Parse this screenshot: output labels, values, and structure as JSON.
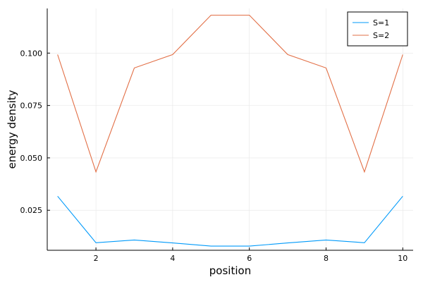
{
  "chart_data": {
    "type": "line",
    "title": "",
    "xlabel": "position",
    "ylabel": "energy density",
    "xlim": [
      0.73,
      10.27
    ],
    "ylim": [
      0.0059,
      0.1213
    ],
    "xticks": [
      2,
      4,
      6,
      8,
      10
    ],
    "xtick_labels": [
      "2",
      "4",
      "6",
      "8",
      "10"
    ],
    "yticks": [
      0.025,
      0.05,
      0.075,
      0.1
    ],
    "ytick_labels": [
      "0.025",
      "0.050",
      "0.075",
      "0.100"
    ],
    "grid": true,
    "legend_position": "top-right",
    "series": [
      {
        "name": "S=1",
        "color": "#009AFA",
        "x": [
          1,
          2,
          3,
          4,
          5,
          6,
          7,
          8,
          9,
          10
        ],
        "y": [
          0.0317,
          0.0095,
          0.0108,
          0.0094,
          0.0079,
          0.0079,
          0.0094,
          0.0108,
          0.0095,
          0.0317
        ]
      },
      {
        "name": "S=2",
        "color": "#E26F46",
        "x": [
          1,
          2,
          3,
          4,
          5,
          6,
          7,
          8,
          9,
          10
        ],
        "y": [
          0.0993,
          0.0433,
          0.0929,
          0.0993,
          0.1181,
          0.1181,
          0.0993,
          0.0929,
          0.0433,
          0.0993
        ]
      }
    ]
  }
}
